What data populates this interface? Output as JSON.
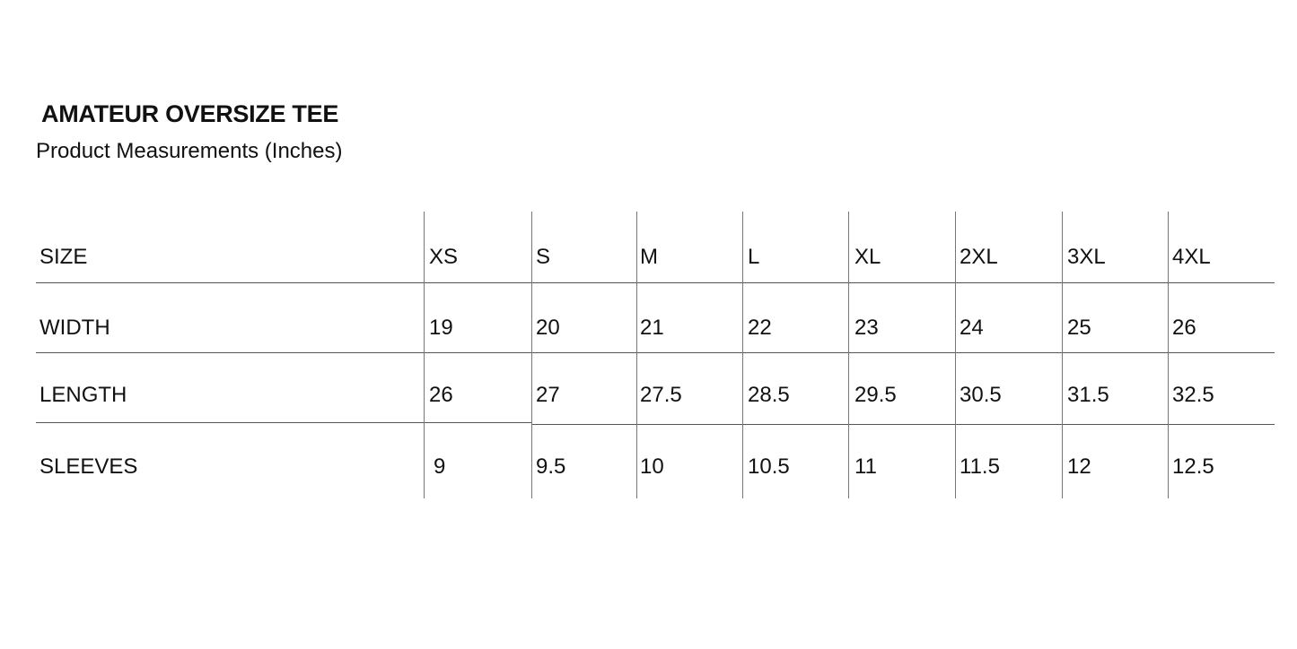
{
  "title": "AMATEUR OVERSIZE TEE",
  "subtitle": "Product Measurements (Inches)",
  "table": {
    "header_label": "SIZE",
    "sizes": [
      "XS",
      "S",
      "M",
      "L",
      "XL",
      "2XL",
      "3XL",
      "4XL"
    ],
    "rows": [
      {
        "label": "WIDTH",
        "values": [
          "19",
          "20",
          "21",
          "22",
          "23",
          "24",
          "25",
          "26"
        ]
      },
      {
        "label": "LENGTH",
        "values": [
          "26",
          "27",
          "27.5",
          "28.5",
          "29.5",
          "30.5",
          "31.5",
          "32.5"
        ]
      },
      {
        "label": "SLEEVES",
        "values": [
          "9",
          "9.5",
          "10",
          "10.5",
          "11",
          "11.5",
          "12",
          "12.5"
        ]
      }
    ]
  }
}
